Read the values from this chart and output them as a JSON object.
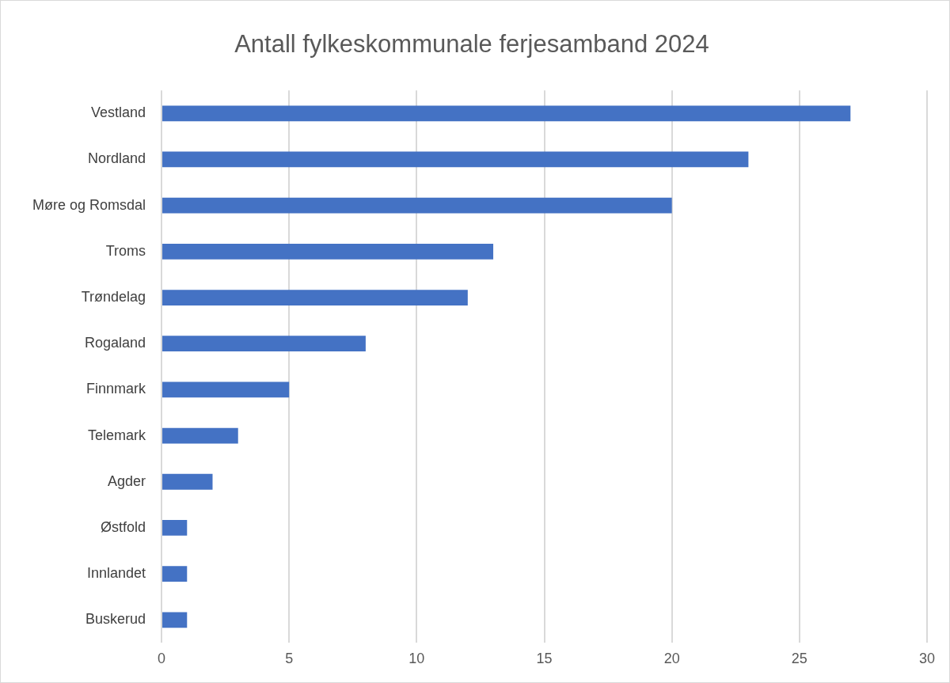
{
  "chart_data": {
    "type": "bar",
    "orientation": "horizontal",
    "title": "Antall fylkeskommunale ferjesamband 2024",
    "categories": [
      "Vestland",
      "Nordland",
      "Møre og Romsdal",
      "Troms",
      "Trøndelag",
      "Rogaland",
      "Finnmark",
      "Telemark",
      "Agder",
      "Østfold",
      "Innlandet",
      "Buskerud"
    ],
    "values": [
      27,
      23,
      20,
      13,
      12,
      8,
      5,
      3,
      2,
      1,
      1,
      1
    ],
    "color": "#4472c4",
    "xlim": [
      0,
      30
    ],
    "xticks": [
      0,
      5,
      10,
      15,
      20,
      25,
      30
    ],
    "grid": "x",
    "legend": false
  }
}
